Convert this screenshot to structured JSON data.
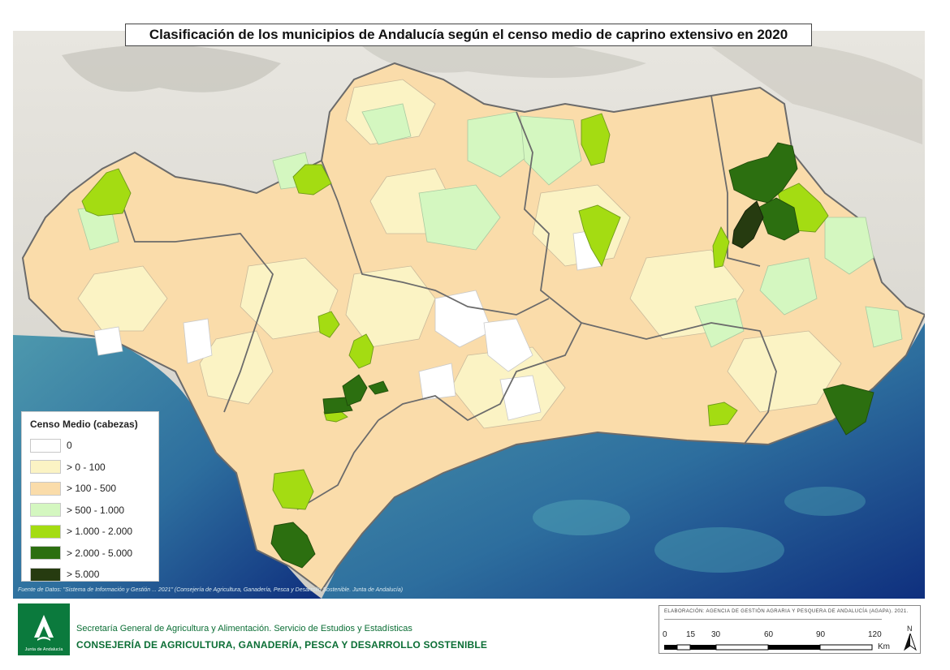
{
  "title": "Clasificación de los municipios de Andalucía según el censo medio de caprino extensivo en 2020",
  "legend": {
    "title": "Censo Medio (cabezas)",
    "classes": [
      {
        "label": "0",
        "color": "#ffffff"
      },
      {
        "label": "> 0 - 100",
        "color": "#fbf3c4"
      },
      {
        "label": "> 100 - 500",
        "color": "#fadcaa"
      },
      {
        "label": "> 500 - 1.000",
        "color": "#d4f7c0"
      },
      {
        "label": "> 1.000 - 2.000",
        "color": "#a4dc12"
      },
      {
        "label": "> 2.000 - 5.000",
        "color": "#2c6f10"
      },
      {
        "label": "> 5.000",
        "color": "#263b10"
      }
    ]
  },
  "source_note": "Fuente de Datos: \"Sistema de Información y Gestión ... 2021\" (Consejería de Agricultura, Ganadería, Pesca y Desarrollo Sostenible. Junta de Andalucía)",
  "credit": "ELABORACIÓN: AGENCIA DE GESTIÓN AGRARIA Y PESQUERA DE ANDALUCÍA (AGAPA). 2021.",
  "scale": {
    "ticks": [
      "0",
      "15",
      "30",
      "60",
      "90",
      "120"
    ],
    "unit": "Km"
  },
  "north": "N",
  "footer": {
    "logo_text": "Junta de Andalucía",
    "line1": "Secretaría General de Agricultura y Alimentación. Servicio de Estudios y Estadísticas",
    "line2": "CONSEJERÍA DE AGRICULTURA, GANADERÍA, PESCA Y DESARROLLO SOSTENIBLE"
  },
  "colors": {
    "sea": "#3e8fa8",
    "deep_sea": "#123f8a",
    "relief": "#dcdad2",
    "border": "#6b6b6b"
  }
}
